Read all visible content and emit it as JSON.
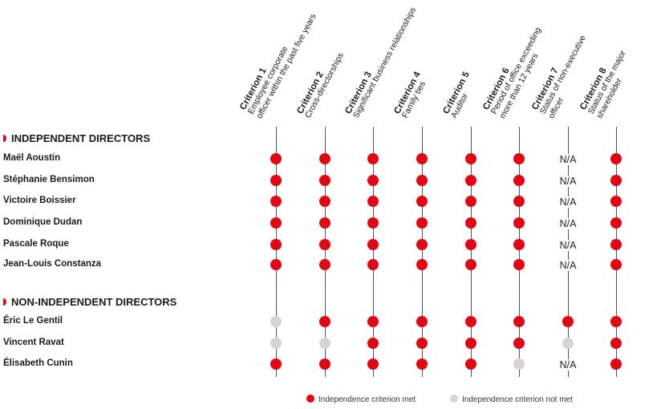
{
  "criteria": [
    {
      "title": "Criterion 1",
      "desc": [
        "Employee corporate",
        "officer within the past five years"
      ]
    },
    {
      "title": "Criterion 2",
      "desc": [
        "Cross-directorships"
      ]
    },
    {
      "title": "Criterion 3",
      "desc": [
        "Significant business relationships"
      ]
    },
    {
      "title": "Criterion 4",
      "desc": [
        "Family ties"
      ]
    },
    {
      "title": "Criterion 5",
      "desc": [
        "Auditor"
      ]
    },
    {
      "title": "Criterion 6",
      "desc": [
        "Period of office exceeding",
        "more than 12 years"
      ]
    },
    {
      "title": "Criterion 7",
      "desc": [
        "Status of non-executive",
        "officer"
      ]
    },
    {
      "title": "Criterion 8",
      "desc": [
        "Status of the major",
        "shareholder"
      ]
    }
  ],
  "na_label": "N/A",
  "sections": [
    {
      "title": "INDEPENDENT DIRECTORS",
      "directors": [
        {
          "name": "Maël Aoustin",
          "status": [
            "met",
            "met",
            "met",
            "met",
            "met",
            "met",
            "na",
            "met"
          ]
        },
        {
          "name": "Stéphanie Bensimon",
          "status": [
            "met",
            "met",
            "met",
            "met",
            "met",
            "met",
            "na",
            "met"
          ]
        },
        {
          "name": "Victoire Boissier",
          "status": [
            "met",
            "met",
            "met",
            "met",
            "met",
            "met",
            "na",
            "met"
          ]
        },
        {
          "name": "Dominique Dudan",
          "status": [
            "met",
            "met",
            "met",
            "met",
            "met",
            "met",
            "na",
            "met"
          ]
        },
        {
          "name": "Pascale Roque",
          "status": [
            "met",
            "met",
            "met",
            "met",
            "met",
            "met",
            "na",
            "met"
          ]
        },
        {
          "name": "Jean-Louis Constanza",
          "status": [
            "met",
            "met",
            "met",
            "met",
            "met",
            "met",
            "na",
            "met"
          ]
        }
      ]
    },
    {
      "title": "NON-INDEPENDENT DIRECTORS",
      "directors": [
        {
          "name": "Éric Le Gentil",
          "status": [
            "notmet",
            "met",
            "met",
            "met",
            "met",
            "met",
            "met",
            "met"
          ]
        },
        {
          "name": "Vincent Ravat",
          "status": [
            "notmet",
            "notmet",
            "met",
            "met",
            "met",
            "met",
            "notmet",
            "met"
          ]
        },
        {
          "name": "Élisabeth Cunin",
          "status": [
            "met",
            "met",
            "met",
            "met",
            "met",
            "notmet",
            "na",
            "met"
          ]
        }
      ]
    }
  ],
  "legend": {
    "met": "Independence criterion met",
    "notmet": "Independence criterion not met"
  },
  "colors": {
    "met": "#e30613",
    "notmet": "#d9d4d1"
  }
}
